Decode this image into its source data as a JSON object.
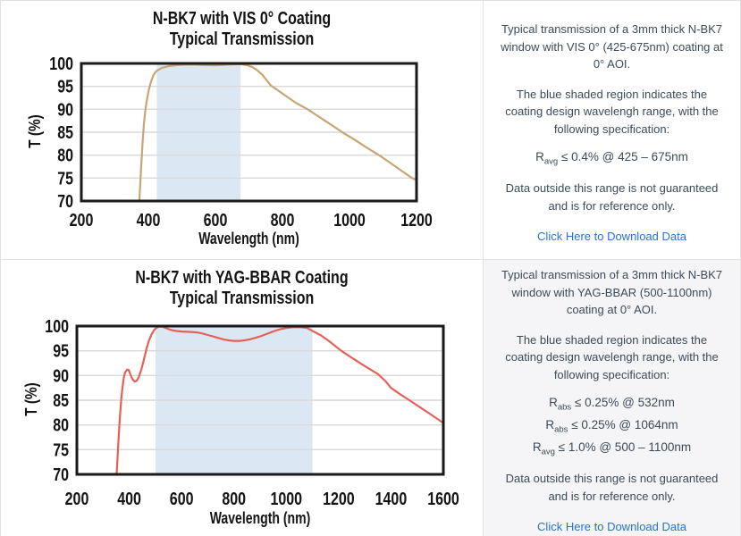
{
  "colors": {
    "link": "#2673d9",
    "info_text": "#3d4b59",
    "vis_line": "#c8a576",
    "yag_line": "#e4615a",
    "shade": "#dbe8f4",
    "gridline": "#d9d9d9",
    "plot_border": "#1a1a1a",
    "gray_panel_bg": "#f5f4f6"
  },
  "panels": [
    {
      "title_line1": "N-BK7 with VIS 0° Coating",
      "title_line2": "Typical Transmission",
      "info": {
        "p1": "Typical transmission of a 3mm thick N-BK7 window with VIS 0° (425-675nm) coating at 0° AOI.",
        "p2": "The blue shaded region indicates the coating design wavelengh range, with the following specification:",
        "specs": [
          {
            "base": "R",
            "sub": "avg",
            "rest": " ≤ 0.4% @ 425 – 675nm"
          }
        ],
        "p3": "Data outside this range is not guaranteed and is for reference only.",
        "link": "Click Here to Download Data"
      }
    },
    {
      "title_line1": "N-BK7 with YAG-BBAR Coating",
      "title_line2": "Typical Transmission",
      "info": {
        "p1": "Typical transmission of a 3mm thick N-BK7 window with YAG-BBAR (500-1100nm) coating at 0° AOI.",
        "p2": "The blue shaded region indicates the coating design wavelengh range, with the following specification:",
        "specs": [
          {
            "base": "R",
            "sub": "abs",
            "rest": " ≤ 0.25% @ 532nm"
          },
          {
            "base": "R",
            "sub": "abs",
            "rest": " ≤ 0.25% @ 1064nm"
          },
          {
            "base": "R",
            "sub": "avg",
            "rest": " ≤ 1.0% @ 500 – 1100nm"
          }
        ],
        "p3": "Data outside this range is not guaranteed and is for reference only.",
        "link": "Click Here to Download Data"
      }
    }
  ],
  "chart_data": [
    {
      "type": "line",
      "title": "N-BK7 with VIS 0° Coating — Typical Transmission",
      "xlabel": "Wavelength (nm)",
      "ylabel": "T (%)",
      "xlim": [
        200,
        1200
      ],
      "ylim": [
        70,
        100
      ],
      "xticks": [
        200,
        400,
        600,
        800,
        1000,
        1200
      ],
      "yticks": [
        70,
        75,
        80,
        85,
        90,
        95,
        100
      ],
      "grid": "horizontal",
      "legend": "none",
      "shaded_region": {
        "x0": 425,
        "x1": 675,
        "color": "#dbe8f4",
        "meaning": "coating design wavelength range 425-675nm"
      },
      "line_color": "#c8a576",
      "series": [
        {
          "name": "N-BK7 VIS 0° coating transmission",
          "x": [
            373,
            376,
            379,
            383,
            387,
            391,
            395,
            400,
            405,
            410,
            415,
            420,
            425,
            440,
            460,
            480,
            500,
            530,
            560,
            600,
            640,
            675,
            695,
            710,
            725,
            740,
            765,
            785,
            810,
            840,
            875,
            900,
            925,
            950,
            978,
            1010,
            1050,
            1088,
            1120,
            1155,
            1187,
            1200
          ],
          "y": [
            70,
            74,
            78,
            83,
            87,
            89.8,
            91.8,
            93.8,
            95.3,
            96.5,
            97.4,
            98,
            98.4,
            99,
            99.4,
            99.6,
            99.7,
            99.75,
            99.65,
            99.6,
            99.75,
            99.85,
            99.6,
            99.2,
            98.5,
            97.5,
            95.2,
            94.2,
            92.9,
            91.4,
            90,
            88.8,
            87.6,
            86.4,
            85,
            83.6,
            81.7,
            80,
            78.4,
            76.6,
            75,
            74.5
          ]
        }
      ]
    },
    {
      "type": "line",
      "title": "N-BK7 with YAG-BBAR Coating — Typical Transmission",
      "xlabel": "Wavelength (nm)",
      "ylabel": "T (%)",
      "xlim": [
        200,
        1600
      ],
      "ylim": [
        70,
        100
      ],
      "xticks": [
        200,
        400,
        600,
        800,
        1000,
        1200,
        1400,
        1600
      ],
      "yticks": [
        70,
        75,
        80,
        85,
        90,
        95,
        100
      ],
      "grid": "horizontal",
      "legend": "none",
      "shaded_region": {
        "x0": 500,
        "x1": 1100,
        "color": "#dbe8f4",
        "meaning": "coating design wavelength range 500-1100nm"
      },
      "line_color": "#e4615a",
      "series": [
        {
          "name": "N-BK7 YAG-BBAR coating transmission",
          "x": [
            352,
            356,
            360,
            365,
            370,
            375,
            380,
            385,
            392,
            398,
            404,
            412,
            420,
            428,
            436,
            445,
            455,
            465,
            475,
            485,
            495,
            505,
            515,
            525,
            540,
            560,
            580,
            600,
            620,
            640,
            660,
            680,
            700,
            720,
            740,
            760,
            780,
            800,
            820,
            840,
            860,
            880,
            900,
            920,
            940,
            960,
            980,
            1000,
            1020,
            1040,
            1060,
            1080,
            1100,
            1130,
            1160,
            1210,
            1250,
            1300,
            1350,
            1380,
            1400,
            1430,
            1470,
            1510,
            1550,
            1600
          ],
          "y": [
            70,
            74,
            78,
            82,
            85.5,
            88,
            89.8,
            90.7,
            91.2,
            91.1,
            90.3,
            89.3,
            88.8,
            88.9,
            89.6,
            91,
            93,
            95.2,
            97,
            98.3,
            99.2,
            99.7,
            99.9,
            99.9,
            99.6,
            99.2,
            99,
            98.9,
            98.85,
            98.8,
            98.7,
            98.5,
            98.2,
            97.9,
            97.6,
            97.3,
            97.1,
            97,
            97,
            97.1,
            97.3,
            97.6,
            97.9,
            98.3,
            98.7,
            99.1,
            99.4,
            99.6,
            99.75,
            99.8,
            99.75,
            99.6,
            99,
            98.2,
            97.1,
            95,
            93.6,
            91.9,
            90.3,
            88.8,
            87.5,
            86.4,
            85,
            83.6,
            82.2,
            80.4
          ]
        }
      ]
    }
  ]
}
